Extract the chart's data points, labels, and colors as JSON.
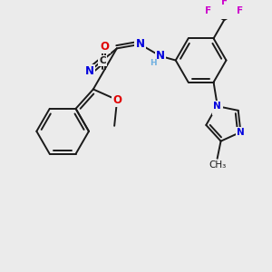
{
  "bg": "#ebebeb",
  "bond_color": "#1a1a1a",
  "bw": 1.4,
  "atom_colors": {
    "O": "#e00000",
    "N": "#0000dd",
    "F": "#cc00cc",
    "C": "#1a1a1a",
    "H": "#70b0e0"
  },
  "fs": 8.5,
  "fs_small": 7.5
}
